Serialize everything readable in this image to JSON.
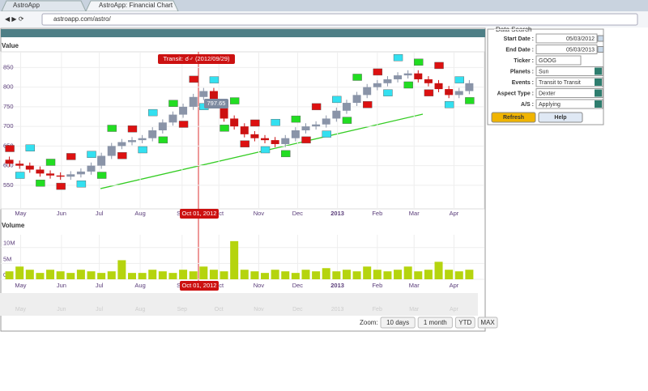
{
  "browser": {
    "tabs": [
      "AstroApp",
      "AstroApp: Financial Chart"
    ],
    "url": "astroapp.com/astro/"
  },
  "chart_data": [
    {
      "type": "candlestick",
      "title": "Value",
      "categories": [
        null,
        null,
        null,
        null,
        null,
        null,
        null,
        null,
        null,
        null,
        null,
        null,
        null,
        null,
        null,
        null,
        null,
        null,
        null,
        null,
        null,
        null,
        null,
        null,
        null,
        null,
        null,
        null,
        null,
        null,
        null,
        null,
        null,
        null,
        null,
        null,
        null,
        null,
        null,
        null,
        null,
        null,
        null,
        null,
        null,
        null
      ],
      "open": [
        615,
        605,
        600,
        590,
        580,
        575,
        572,
        578,
        585,
        600,
        625,
        650,
        660,
        665,
        670,
        690,
        710,
        730,
        750,
        775,
        790,
        760,
        720,
        700,
        680,
        670,
        665,
        655,
        670,
        690,
        700,
        705,
        720,
        740,
        760,
        780,
        800,
        810,
        820,
        830,
        835,
        820,
        810,
        795,
        780,
        790
      ],
      "high": [
        623,
        613,
        608,
        598,
        588,
        583,
        586,
        593,
        608,
        633,
        658,
        668,
        673,
        678,
        698,
        718,
        738,
        758,
        783,
        798,
        798,
        768,
        728,
        708,
        688,
        678,
        673,
        678,
        698,
        708,
        713,
        728,
        748,
        768,
        788,
        808,
        818,
        828,
        838,
        843,
        843,
        828,
        818,
        803,
        798,
        818
      ],
      "low": [
        597,
        592,
        582,
        572,
        567,
        564,
        564,
        570,
        577,
        592,
        617,
        642,
        652,
        657,
        662,
        682,
        702,
        722,
        742,
        767,
        752,
        712,
        692,
        672,
        662,
        657,
        647,
        647,
        662,
        682,
        692,
        697,
        712,
        732,
        752,
        772,
        792,
        802,
        812,
        822,
        812,
        802,
        787,
        772,
        772,
        782
      ],
      "close": [
        605,
        600,
        590,
        580,
        575,
        572,
        578,
        585,
        600,
        625,
        650,
        660,
        665,
        670,
        690,
        710,
        730,
        750,
        775,
        790,
        760,
        720,
        700,
        680,
        670,
        665,
        655,
        670,
        690,
        700,
        705,
        720,
        740,
        760,
        780,
        800,
        810,
        820,
        830,
        835,
        820,
        810,
        795,
        780,
        790,
        810
      ],
      "up_color": "#8a94a8",
      "down_color": "#cc1111",
      "ylim": [
        490,
        890
      ],
      "yticks": [
        550,
        600,
        650,
        700,
        750,
        800,
        850
      ],
      "xlim": [
        -0.6,
        46
      ],
      "xticks": [
        {
          "value": 1.1,
          "label": "May"
        },
        {
          "value": 5.1,
          "label": "Jun"
        },
        {
          "value": 8.8,
          "label": "Jul"
        },
        {
          "value": 12.8,
          "label": "Aug"
        },
        {
          "value": 16.9,
          "label": "Sep"
        },
        {
          "value": 20.5,
          "label": "Oct"
        },
        {
          "value": 24.4,
          "label": "Nov"
        },
        {
          "value": 28.2,
          "label": "Dec"
        },
        {
          "value": 32.1,
          "label": "2013"
        },
        {
          "value": 36,
          "label": "Feb"
        },
        {
          "value": 39.6,
          "label": "Mar"
        },
        {
          "value": 43.5,
          "label": "Apr"
        }
      ],
      "annotations": {
        "transit": "Transit: ☌♂ (2012/09/29)",
        "price": "797.65",
        "date": "Oct 01, 2012"
      }
    },
    {
      "type": "bar",
      "title": "Volume",
      "color": "#b5d40e",
      "values": [
        2500000,
        4000000,
        3000000,
        2000000,
        3000000,
        2500000,
        2000000,
        3000000,
        2500000,
        2000000,
        2500000,
        6000000,
        2000000,
        2000000,
        3000000,
        2500000,
        2000000,
        3000000,
        2500000,
        4000000,
        3000000,
        2500000,
        12000000,
        3000000,
        2500000,
        2000000,
        3000000,
        2500000,
        2000000,
        3000000,
        2500000,
        3500000,
        2500000,
        3000000,
        2500000,
        4000000,
        3000000,
        2500000,
        3000000,
        4000000,
        2500000,
        3000000,
        5500000,
        3000000,
        2500000,
        3000000
      ],
      "ylim": [
        0,
        14000000
      ],
      "yticks": [
        {
          "value": 0,
          "label": "0"
        },
        {
          "value": 5000000,
          "label": "5M"
        },
        {
          "value": 10000000,
          "label": "10M"
        }
      ],
      "annotations": {
        "date": "Oct 01, 2012"
      }
    }
  ],
  "zoom": {
    "label": "Zoom:",
    "buttons": [
      "10 days",
      "1 month",
      "YTD",
      "MAX"
    ]
  },
  "form": {
    "title": "Data Search",
    "fields": [
      {
        "label": "Start Date :",
        "value": "05/03/2012"
      },
      {
        "label": "End Date :",
        "value": "05/03/2013"
      },
      {
        "label": "Ticker :",
        "value": "GOOG"
      },
      {
        "label": "Planets :",
        "value": "Sun"
      },
      {
        "label": "Events :",
        "value": "Transit to Transit"
      },
      {
        "label": "Aspect Type :",
        "value": "Dexter"
      },
      {
        "label": "A/S :",
        "value": "Applying"
      }
    ],
    "buttons": [
      "Refresh",
      "Help"
    ]
  }
}
